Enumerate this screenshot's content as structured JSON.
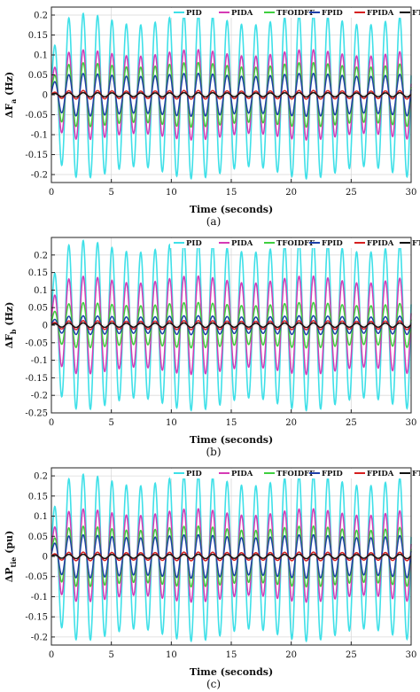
{
  "chart_data": [
    {
      "type": "line",
      "caption": "(a)",
      "xlabel": "Time (seconds)",
      "ylabel": {
        "main": "ΔF",
        "sub": "a",
        "unit": "(Hz)"
      },
      "xlim": [
        0,
        30
      ],
      "ylim": [
        -0.22,
        0.22
      ],
      "xticks": [
        0,
        5,
        10,
        15,
        20,
        25,
        30
      ],
      "yticks": [
        -0.2,
        -0.15,
        -0.1,
        -0.05,
        0,
        0.05,
        0.1,
        0.15,
        0.2
      ],
      "grid": true,
      "legend": "top",
      "oscillation_period_s": 1.2,
      "series": [
        {
          "name": "PID",
          "color": "#3fe0e8",
          "peak": 0.19,
          "trough": -0.195
        },
        {
          "name": "PIDA",
          "color": "#d63bb5",
          "peak": 0.105,
          "trough": -0.105
        },
        {
          "name": "TFOIDFF",
          "color": "#3fcf3f",
          "peak": 0.075,
          "trough": -0.075
        },
        {
          "name": "FPID",
          "color": "#1f3fa8",
          "peak": 0.05,
          "trough": -0.05
        },
        {
          "name": "FPIDA",
          "color": "#d62020",
          "peak": 0.01,
          "trough": -0.01
        },
        {
          "name": "FTFOIDFF",
          "color": "#111111",
          "peak": 0.005,
          "trough": -0.005
        }
      ]
    },
    {
      "type": "line",
      "caption": "(b)",
      "xlabel": "Time (seconds)",
      "ylabel": {
        "main": "ΔF",
        "sub": "b",
        "unit": "(Hz)"
      },
      "xlim": [
        0,
        30
      ],
      "ylim": [
        -0.25,
        0.25
      ],
      "xticks": [
        0,
        5,
        10,
        15,
        20,
        25,
        30
      ],
      "yticks": [
        -0.25,
        -0.2,
        -0.15,
        -0.1,
        -0.05,
        0,
        0.05,
        0.1,
        0.15,
        0.2
      ],
      "grid": true,
      "legend": "top",
      "oscillation_period_s": 1.2,
      "series": [
        {
          "name": "PID",
          "color": "#3fe0e8",
          "peak": 0.225,
          "trough": -0.225
        },
        {
          "name": "PIDA",
          "color": "#d63bb5",
          "peak": 0.13,
          "trough": -0.13
        },
        {
          "name": "TFOIDFF",
          "color": "#3fcf3f",
          "peak": 0.06,
          "trough": -0.06
        },
        {
          "name": "FPID",
          "color": "#1f3fa8",
          "peak": 0.025,
          "trough": -0.025
        },
        {
          "name": "FPIDA",
          "color": "#d62020",
          "peak": 0.012,
          "trough": -0.012
        },
        {
          "name": "FTFOIDFF",
          "color": "#111111",
          "peak": 0.006,
          "trough": -0.006
        }
      ]
    },
    {
      "type": "line",
      "caption": "(c)",
      "xlabel": "Time (seconds)",
      "ylabel": {
        "main": "ΔP",
        "sub": "tie",
        "unit": "(pu)"
      },
      "xlim": [
        0,
        30
      ],
      "ylim": [
        -0.22,
        0.22
      ],
      "xticks": [
        0,
        5,
        10,
        15,
        20,
        25,
        30
      ],
      "yticks": [
        -0.2,
        -0.15,
        -0.1,
        -0.05,
        0,
        0.05,
        0.1,
        0.15,
        0.2
      ],
      "grid": true,
      "legend": "top",
      "oscillation_period_s": 1.2,
      "series": [
        {
          "name": "PID",
          "color": "#3fe0e8",
          "peak": 0.19,
          "trough": -0.195
        },
        {
          "name": "PIDA",
          "color": "#d63bb5",
          "peak": 0.11,
          "trough": -0.105
        },
        {
          "name": "TFOIDFF",
          "color": "#3fcf3f",
          "peak": 0.07,
          "trough": -0.07
        },
        {
          "name": "FPID",
          "color": "#1f3fa8",
          "peak": 0.05,
          "trough": -0.05
        },
        {
          "name": "FPIDA",
          "color": "#d62020",
          "peak": 0.01,
          "trough": -0.01
        },
        {
          "name": "FTFOIDFF",
          "color": "#111111",
          "peak": 0.005,
          "trough": -0.005
        }
      ]
    }
  ]
}
